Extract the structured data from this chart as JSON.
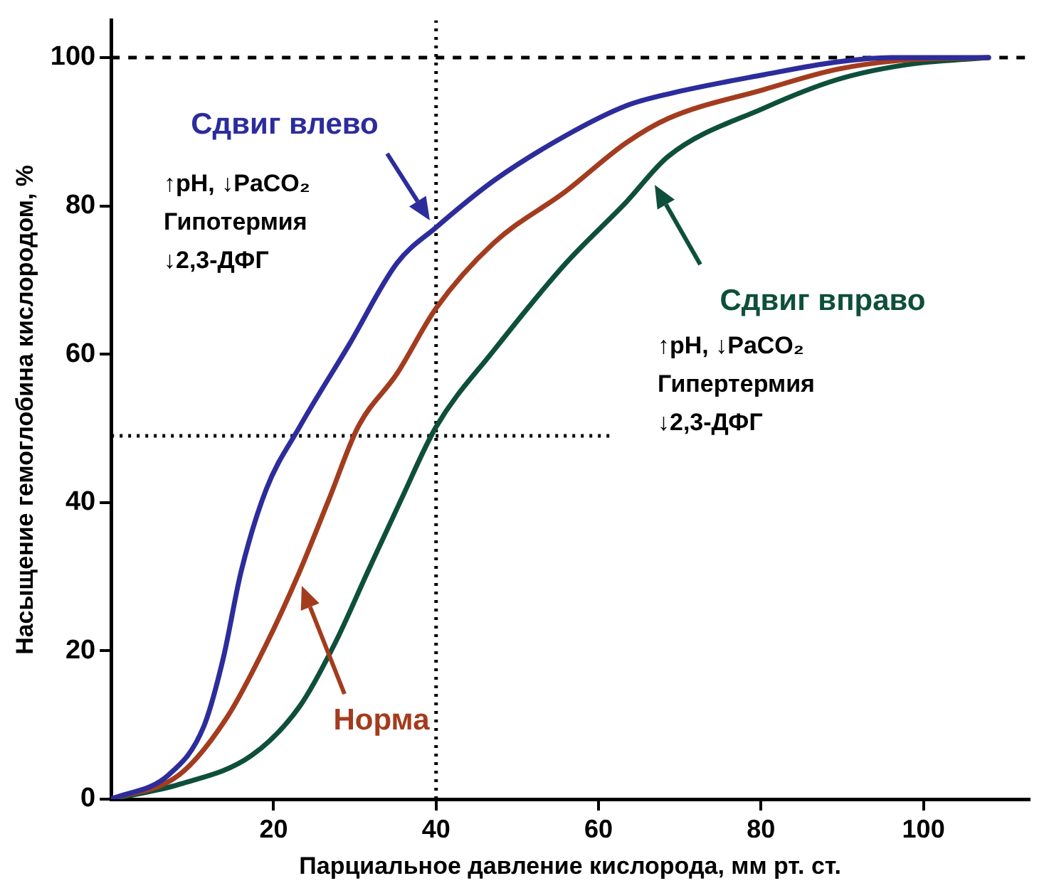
{
  "chart_data": {
    "type": "line",
    "xlabel": "Парциальное давление кислорода, мм рт. ст.",
    "ylabel": "Насыщение гемоглобина кислородом, %",
    "xlim": [
      0,
      113
    ],
    "ylim": [
      0,
      105
    ],
    "xticks": [
      20,
      40,
      60,
      80,
      100
    ],
    "yticks": [
      0,
      20,
      40,
      60,
      80,
      100
    ],
    "grid": false,
    "legend": false,
    "marker": "none",
    "series": [
      {
        "color": "#2c2c9c",
        "x": [
          0,
          7.1,
          11.4,
          13.8,
          16,
          19.1,
          23.2,
          29.3,
          35.2,
          40,
          47.1,
          56,
          63.4,
          68.6,
          80.4,
          89.3,
          96,
          108
        ],
        "values": [
          0,
          3.3,
          9.8,
          19,
          30.7,
          41.8,
          50.2,
          61.3,
          72.3,
          77.1,
          83.4,
          89.5,
          93.5,
          95.1,
          97.7,
          99.4,
          100,
          100
        ]
      },
      {
        "color": "#a33c1e",
        "x": [
          0,
          8.4,
          14.3,
          19.1,
          23.2,
          26.8,
          30.4,
          35.2,
          40,
          47.1,
          56,
          63.4,
          68.6,
          80.4,
          89.3,
          97,
          108
        ],
        "values": [
          0,
          3.3,
          11.1,
          20.9,
          30.7,
          40.4,
          50.2,
          57.4,
          66.2,
          75,
          82,
          88.5,
          91.8,
          95.7,
          98.4,
          99.6,
          100
        ]
      },
      {
        "color": "#0e4f3b",
        "x": [
          0,
          8.4,
          17.3,
          23.2,
          27.5,
          31.6,
          35.7,
          40,
          47.1,
          56,
          63.4,
          68.6,
          80.4,
          89.3,
          97.7,
          108
        ],
        "values": [
          0,
          2,
          5.9,
          12.5,
          20.9,
          30.7,
          40.4,
          50.2,
          60.5,
          72.3,
          80.5,
          86.7,
          93.2,
          97,
          99,
          100
        ]
      },
      {
        "type": "line",
        "color": "#000000",
        "line_style": "dotted",
        "x": [
          0,
          62
        ],
        "values": [
          49,
          49
        ]
      }
    ],
    "ref_lines": [
      {
        "axis": "y",
        "value": 100,
        "color": "#000000",
        "line_style": "dashed"
      },
      {
        "axis": "x",
        "value": 40,
        "color": "#000000",
        "line_style": "dotted"
      }
    ],
    "annotations": [
      "Сдвиг влево",
      "↑pH, ↓PaCO₂\nГипотермия\n↓2,3-ДФГ",
      "Сдвиг вправо",
      "↑pH, ↓PaCO₂\nГипертермия\n↓2,3-ДФГ",
      "Норма"
    ]
  }
}
